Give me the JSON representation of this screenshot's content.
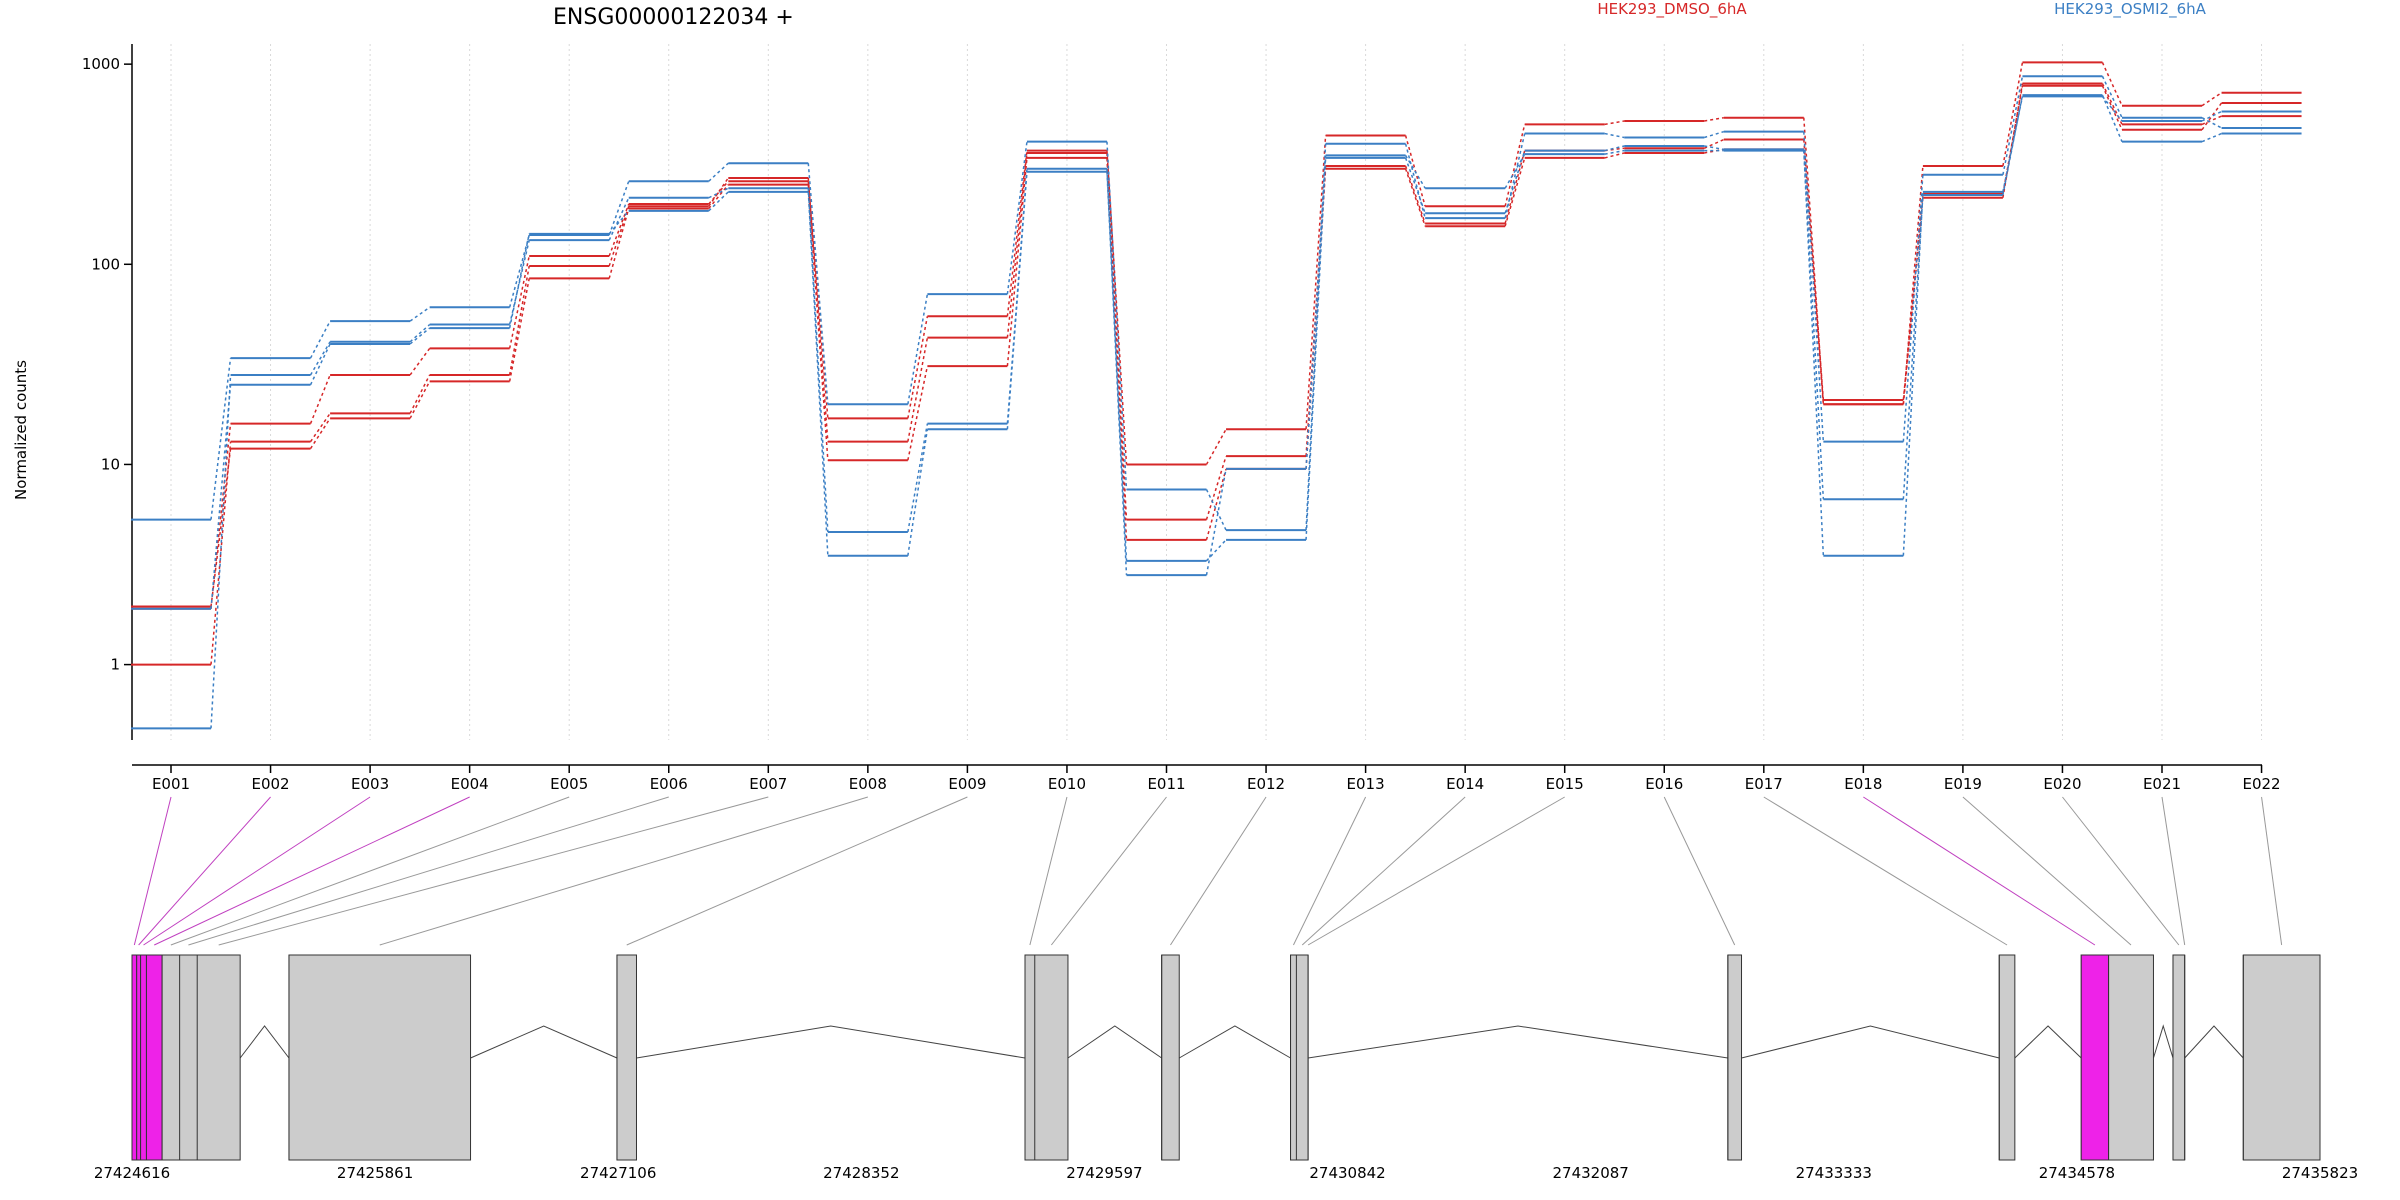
{
  "chart_data": {
    "type": "line",
    "title": "ENSG00000122034 +",
    "ylabel": "Normalized counts",
    "xlabel": "",
    "yscale": "log",
    "ylim": [
      0.42,
      1150
    ],
    "yticks": [
      1,
      10,
      100,
      1000
    ],
    "ytick_labels": [
      "1",
      "10",
      "100",
      "1000"
    ],
    "grid": "vertical dotted at exon centers",
    "legend": [
      {
        "name": "HEK293_DMSO_6hA",
        "color": "#d62728",
        "placement": "top-center"
      },
      {
        "name": "HEK293_OSMI2_6hA",
        "color": "#3b7fc4",
        "placement": "top-right"
      }
    ],
    "categories": [
      "E001",
      "E002",
      "E003",
      "E004",
      "E005",
      "E006",
      "E007",
      "E008",
      "E009",
      "E010",
      "E011",
      "E012",
      "E013",
      "E014",
      "E015",
      "E016",
      "E017",
      "E018",
      "E019",
      "E020",
      "E021",
      "E022"
    ],
    "series": [
      {
        "group": "HEK293_DMSO_6hA",
        "color": "#d62728",
        "values": [
          1.9,
          16,
          28,
          38,
          110,
          200,
          260,
          17,
          55,
          370,
          10,
          15,
          440,
          195,
          500,
          520,
          540,
          20,
          310,
          1020,
          620,
          720
        ]
      },
      {
        "group": "HEK293_DMSO_6hA",
        "color": "#d62728",
        "values": [
          1.0,
          13,
          18,
          28,
          98,
          195,
          270,
          13,
          43,
          360,
          5.3,
          11,
          310,
          160,
          370,
          380,
          420,
          21,
          225,
          780,
          470,
          640
        ]
      },
      {
        "group": "HEK293_DMSO_6hA",
        "color": "#d62728",
        "values": [
          1.95,
          12,
          17,
          26,
          85,
          190,
          250,
          10.5,
          31,
          340,
          4.2,
          9.5,
          300,
          155,
          340,
          360,
          375,
          20,
          215,
          800,
          500,
          550
        ]
      },
      {
        "group": "HEK293_OSMI2_6hA",
        "color": "#3b7fc4",
        "values": [
          5.3,
          34,
          52,
          61,
          140,
          260,
          320,
          20,
          71,
          410,
          7.5,
          4.7,
          400,
          170,
          450,
          430,
          460,
          13,
          280,
          870,
          540,
          480
        ]
      },
      {
        "group": "HEK293_OSMI2_6hA",
        "color": "#3b7fc4",
        "values": [
          0.48,
          28,
          41,
          50,
          132,
          215,
          240,
          4.6,
          16,
          300,
          3.3,
          4.2,
          340,
          180,
          370,
          390,
          375,
          6.7,
          222,
          700,
          410,
          450
        ]
      },
      {
        "group": "HEK293_OSMI2_6hA",
        "color": "#3b7fc4",
        "values": [
          1.9,
          25,
          40,
          48,
          142,
          185,
          230,
          3.5,
          15,
          290,
          2.8,
          9.5,
          350,
          240,
          355,
          370,
          370,
          3.5,
          230,
          690,
          520,
          580
        ]
      }
    ],
    "genomic_axis": {
      "labels": [
        "27424616",
        "27425861",
        "27427106",
        "27428352",
        "27429597",
        "27430842",
        "27432087",
        "27433333",
        "27434578",
        "27435823"
      ],
      "start": 27424616,
      "end": 27435823
    },
    "exons": [
      {
        "id": "E001",
        "start": 27424616,
        "end": 27424640,
        "highlight": true
      },
      {
        "id": "E002",
        "start": 27424640,
        "end": 27424660,
        "highlight": true
      },
      {
        "id": "E003",
        "start": 27424660,
        "end": 27424690,
        "highlight": true
      },
      {
        "id": "E004",
        "start": 27424690,
        "end": 27424770,
        "highlight": true
      },
      {
        "id": "E005",
        "start": 27424770,
        "end": 27424860,
        "highlight": false
      },
      {
        "id": "E006",
        "start": 27424860,
        "end": 27424950,
        "highlight": false
      },
      {
        "id": "E007",
        "start": 27424950,
        "end": 27425170,
        "highlight": false
      },
      {
        "id": "E008",
        "start": 27425420,
        "end": 27426350,
        "highlight": false
      },
      {
        "id": "E009",
        "start": 27427100,
        "end": 27427200,
        "highlight": false
      },
      {
        "id": "E010",
        "start": 27429190,
        "end": 27429240,
        "highlight": false
      },
      {
        "id": "E011",
        "start": 27429240,
        "end": 27429410,
        "highlight": false
      },
      {
        "id": "E012",
        "start": 27429890,
        "end": 27429980,
        "highlight": false
      },
      {
        "id": "E013",
        "start": 27430550,
        "end": 27430580,
        "highlight": false
      },
      {
        "id": "E014",
        "start": 27430580,
        "end": 27430640,
        "highlight": false
      },
      {
        "id": "E015",
        "start": 27430640,
        "end": 27430640,
        "highlight": false
      },
      {
        "id": "E016",
        "start": 27432790,
        "end": 27432860,
        "highlight": false
      },
      {
        "id": "E017",
        "start": 27434180,
        "end": 27434260,
        "highlight": false
      },
      {
        "id": "E018",
        "start": 27434600,
        "end": 27434740,
        "highlight": true
      },
      {
        "id": "E019",
        "start": 27434740,
        "end": 27434970,
        "highlight": false
      },
      {
        "id": "E020",
        "start": 27435070,
        "end": 27435130,
        "highlight": false
      },
      {
        "id": "E021",
        "start": 27435130,
        "end": 27435130,
        "highlight": false
      },
      {
        "id": "E022",
        "start": 27435430,
        "end": 27435823,
        "highlight": false
      }
    ]
  }
}
